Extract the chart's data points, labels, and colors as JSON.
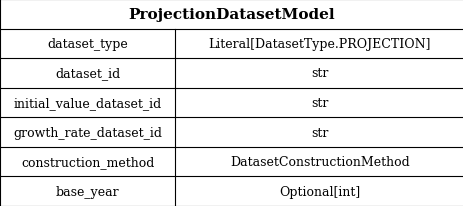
{
  "title": "ProjectionDatasetModel",
  "rows": [
    [
      "dataset_type",
      "Literal[DatasetType.PROJECTION]"
    ],
    [
      "dataset_id",
      "str"
    ],
    [
      "initial_value_dataset_id",
      "str"
    ],
    [
      "growth_rate_dataset_id",
      "str"
    ],
    [
      "construction_method",
      "DatasetConstructionMethod"
    ],
    [
      "base_year",
      "Optional[int]"
    ]
  ],
  "col_split": 0.378,
  "background_color": "#ffffff",
  "border_color": "#000000",
  "title_fontsize": 11,
  "cell_fontsize": 9,
  "font_family": "DejaVu Serif",
  "fig_width": 4.64,
  "fig_height": 2.07,
  "dpi": 100
}
